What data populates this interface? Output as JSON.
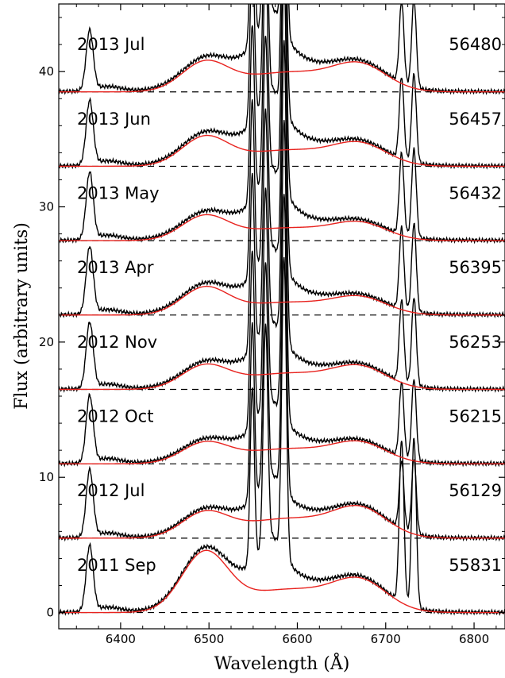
{
  "chart_data": {
    "type": "line",
    "xlabel": "Wavelength (Å)",
    "ylabel": "Flux (arbitrary units)",
    "xlim": [
      6330,
      6835
    ],
    "ylim": [
      -1.2,
      45
    ],
    "xticks": [
      6400,
      6500,
      6600,
      6700,
      6800
    ],
    "yticks": [
      0,
      10,
      20,
      30,
      40
    ],
    "grid": false,
    "legend": "none",
    "colors": {
      "observed": "#000000",
      "model": "#e8231f",
      "baseline": "#000000"
    },
    "lines": {
      "oi": {
        "center": 6365,
        "width": 4
      },
      "nii_blue": {
        "center": 6549,
        "width": 2.4
      },
      "halpha": {
        "center": 6564,
        "width": 2.6
      },
      "nii_red": {
        "center": 6585,
        "width": 2.6
      },
      "sii_blue": {
        "center": 6718,
        "width": 2.6
      },
      "sii_red": {
        "center": 6732,
        "width": 2.6
      }
    },
    "epochs": [
      {
        "label": "2011 Sep",
        "mjd": "55831",
        "offset": 0,
        "blue_peak": 4.2,
        "red_peak": 2.0,
        "oi": 4.8,
        "sii": 12.0,
        "broad": 4.0
      },
      {
        "label": "2012 Jul",
        "mjd": "56129",
        "offset": 5.5,
        "blue_peak": 1.7,
        "red_peak": 1.9,
        "oi": 4.9,
        "sii": 5.0,
        "broad": 3.3
      },
      {
        "label": "2012 Oct",
        "mjd": "56215",
        "offset": 11.0,
        "blue_peak": 1.4,
        "red_peak": 1.3,
        "oi": 4.9,
        "sii": 5.5,
        "broad": 3.6
      },
      {
        "label": "2012 Nov",
        "mjd": "56253",
        "offset": 16.5,
        "blue_peak": 1.6,
        "red_peak": 1.4,
        "oi": 4.8,
        "sii": 6.0,
        "broad": 3.9
      },
      {
        "label": "2013 Apr",
        "mjd": "56395",
        "offset": 22.0,
        "blue_peak": 1.9,
        "red_peak": 1.1,
        "oi": 4.9,
        "sii": 6.0,
        "broad": 4.2
      },
      {
        "label": "2013 May",
        "mjd": "56432",
        "offset": 27.5,
        "blue_peak": 1.7,
        "red_peak": 1.1,
        "oi": 4.9,
        "sii": 6.0,
        "broad": 4.5
      },
      {
        "label": "2013 Jun",
        "mjd": "56457",
        "offset": 33.0,
        "blue_peak": 2.0,
        "red_peak": 1.4,
        "oi": 4.7,
        "sii": 6.0,
        "broad": 4.6
      },
      {
        "label": "2013 Jul",
        "mjd": "56480",
        "offset": 38.5,
        "blue_peak": 2.0,
        "red_peak": 1.7,
        "oi": 4.4,
        "sii": 6.0,
        "broad": 4.8
      }
    ]
  }
}
